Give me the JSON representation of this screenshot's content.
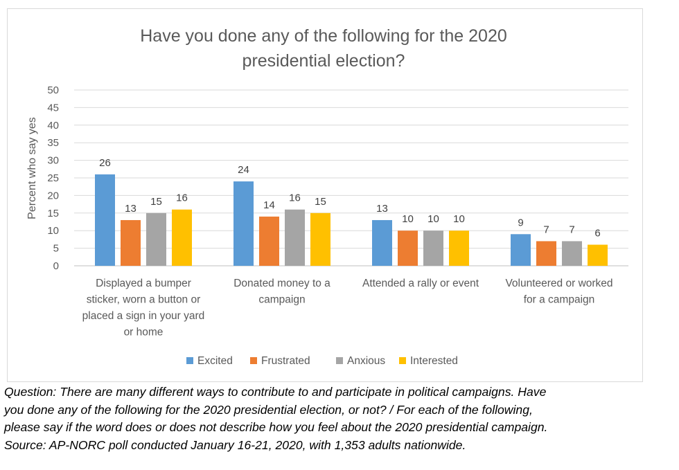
{
  "chart_data": {
    "type": "bar",
    "title_lines": [
      "Have you done any of the following for the 2020",
      "presidential election?"
    ],
    "ylabel": "Percent  who say yes",
    "xlabel": "",
    "ylim": [
      0,
      50
    ],
    "yticks": [
      "0",
      "5",
      "10",
      "15",
      "20",
      "25",
      "30",
      "35",
      "40",
      "45",
      "50"
    ],
    "categories": [
      "Displayed a bumper sticker, worn a button or placed a sign in your yard or home",
      "Donated money to a campaign",
      "Attended a rally or event",
      "Volunteered or worked for a campaign"
    ],
    "category_lines": [
      [
        "Displayed a bumper",
        "sticker, worn a button or",
        "placed a sign in your yard",
        "or home"
      ],
      [
        "Donated money to a",
        "campaign"
      ],
      [
        "Attended a rally or event"
      ],
      [
        "Volunteered or worked",
        "for a campaign"
      ]
    ],
    "series": [
      {
        "name": "Excited",
        "color": "#5b9bd5",
        "values": [
          26,
          24,
          13,
          9
        ]
      },
      {
        "name": "Frustrated",
        "color": "#ed7d31",
        "values": [
          13,
          14,
          10,
          7
        ]
      },
      {
        "name": "Anxious",
        "color": "#a5a5a5",
        "values": [
          15,
          16,
          10,
          7
        ]
      },
      {
        "name": "Interested",
        "color": "#ffc000",
        "values": [
          16,
          15,
          10,
          6
        ]
      }
    ],
    "grid": true,
    "legend_position": "bottom",
    "data_labels": true
  },
  "caption": {
    "lines": [
      "Question:  There are many different ways to contribute to and participate in political campaigns. Have",
      "you done any of the following for the 2020 presidential election, or not? / For each of the following,",
      "please say if the word does or does not describe how you feel about the 2020 presidential campaign.",
      "Source: AP-NORC poll conducted January 16-21, 2020, with 1,353 adults nationwide."
    ]
  }
}
